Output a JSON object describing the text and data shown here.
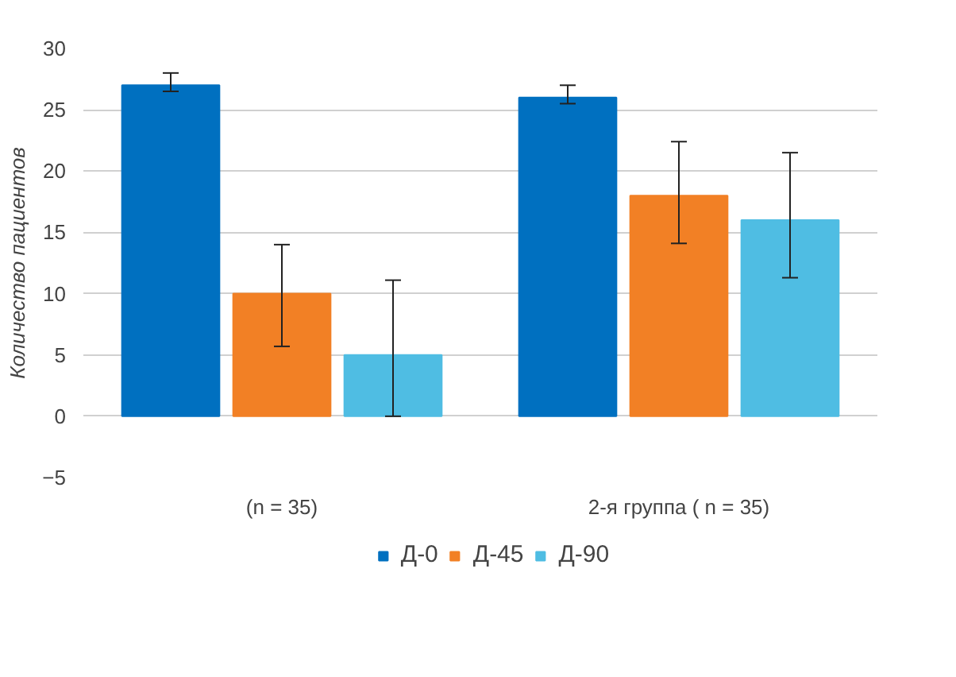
{
  "chart_data": {
    "type": "bar",
    "ylabel": "Количество пациентов",
    "categories": [
      "(n = 35)",
      "2-я группа ( n = 35)"
    ],
    "series": [
      {
        "name": "Д-0",
        "color": "#0070c0",
        "values": [
          27,
          26
        ],
        "errors": [
          [
            26.5,
            28
          ],
          [
            25.5,
            27
          ]
        ]
      },
      {
        "name": "Д-45",
        "color": "#f28025",
        "values": [
          10,
          18
        ],
        "errors": [
          [
            5.7,
            14
          ],
          [
            14.1,
            22.4
          ]
        ]
      },
      {
        "name": "Д-90",
        "color": "#4fbde3",
        "values": [
          5,
          16
        ],
        "errors": [
          [
            0,
            11.1
          ],
          [
            11.3,
            21.5
          ]
        ]
      }
    ],
    "ylim": [
      -5,
      30
    ],
    "yticks": [
      -5,
      0,
      5,
      10,
      15,
      20,
      25,
      30
    ],
    "grid": "y",
    "legend": "bottom"
  }
}
